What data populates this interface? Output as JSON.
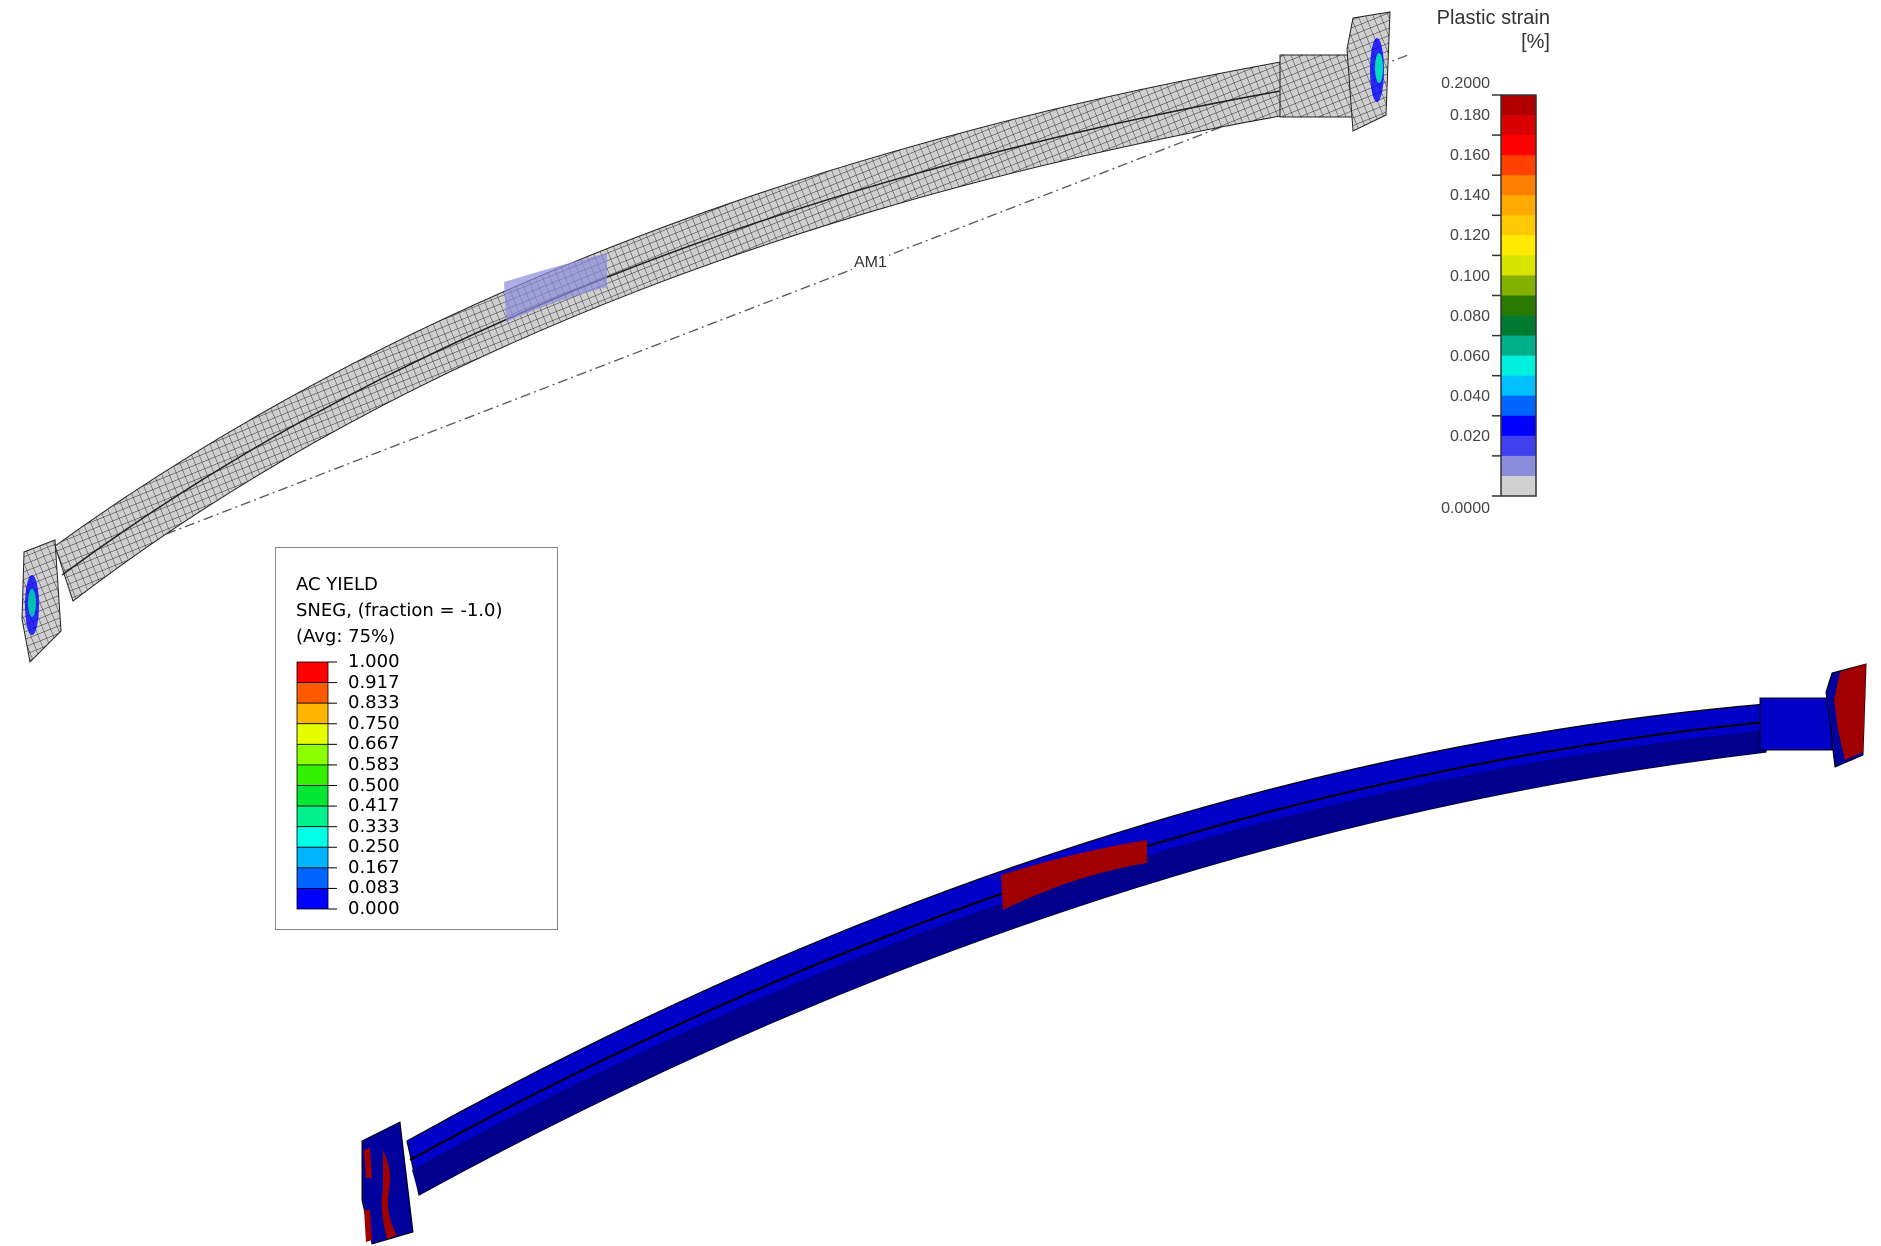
{
  "measure_label": "AM1",
  "plastic_strain_legend": {
    "title_line1": "Plastic strain",
    "title_line2": "[%]",
    "tick_labels": [
      "0.2000",
      "0.180",
      "0.160",
      "0.140",
      "0.120",
      "0.100",
      "0.080",
      "0.060",
      "0.040",
      "0.020",
      "0.0000"
    ],
    "band_colors": [
      "#b00000",
      "#d80000",
      "#ff0000",
      "#ff4000",
      "#ff7f00",
      "#ffaa00",
      "#ffc800",
      "#ffea00",
      "#d8e400",
      "#84b000",
      "#2a7a00",
      "#007a30",
      "#00b08a",
      "#00f0e0",
      "#00c0ff",
      "#0064ff",
      "#0000ff",
      "#4040ee",
      "#8c8cdd",
      "#d0d0d0"
    ]
  },
  "ac_yield_legend": {
    "title_line1": "AC YIELD",
    "title_line2": "SNEG, (fraction = -1.0)",
    "title_line3": "(Avg: 75%)",
    "tick_labels": [
      "1.000",
      "0.917",
      "0.833",
      "0.750",
      "0.667",
      "0.583",
      "0.500",
      "0.417",
      "0.333",
      "0.250",
      "0.167",
      "0.083",
      "0.000"
    ],
    "band_colors": [
      "#ff0000",
      "#ff5a00",
      "#ffb400",
      "#e6ff00",
      "#8cff00",
      "#32f000",
      "#00e632",
      "#00f08c",
      "#00ffe6",
      "#00b4ff",
      "#0064ff",
      "#0000ff"
    ]
  },
  "colors": {
    "mesh_fill": "#c8c8c8",
    "mesh_line": "#333333",
    "yield_beam": "#0000c8",
    "yield_beam_dark": "#00008c",
    "yielded": "#a00000"
  }
}
